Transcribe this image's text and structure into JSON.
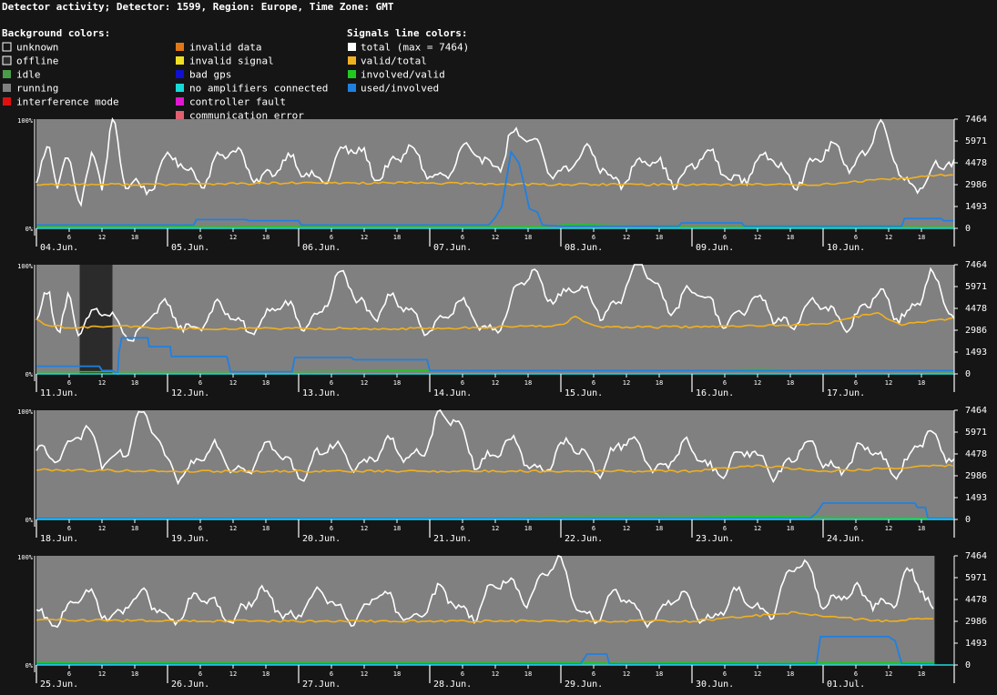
{
  "title": "Detector activity; Detector: 1599, Region: Europe, Time Zone: GMT",
  "legend": {
    "background_header": "Background colors:",
    "signals_header": "Signals line colors:",
    "background": [
      {
        "label": "unknown",
        "color": "#151515",
        "outlined": true
      },
      {
        "label": "offline",
        "color": "#2b2b2b",
        "outlined": true
      },
      {
        "label": "idle",
        "color": "#4a9c4a"
      },
      {
        "label": "running",
        "color": "#808080"
      },
      {
        "label": "interference mode",
        "color": "#e01010"
      },
      {
        "label": "invalid data",
        "color": "#e07818"
      },
      {
        "label": "invalid signal",
        "color": "#f0e020"
      },
      {
        "label": "bad gps",
        "color": "#1010d0"
      },
      {
        "label": "no amplifiers connected",
        "color": "#18d8d8"
      },
      {
        "label": "controller fault",
        "color": "#e018d0"
      },
      {
        "label": "communication error",
        "color": "#e06070"
      }
    ],
    "signals": [
      {
        "label": "total (max = 7464)",
        "color": "#ffffff"
      },
      {
        "label": "valid/total",
        "color": "#f0b020"
      },
      {
        "label": "involved/valid",
        "color": "#20c820"
      },
      {
        "label": "used/involved",
        "color": "#2080e0"
      }
    ]
  },
  "chart_data": {
    "type": "line",
    "left_axis": {
      "labels": [
        "100%",
        "0%"
      ],
      "range": [
        0,
        100
      ]
    },
    "right_axis": {
      "ticks": [
        "7464",
        "5971",
        "4478",
        "2986",
        "1493",
        "0"
      ],
      "range": [
        0,
        7464
      ]
    },
    "hour_ticks": [
      "6",
      "12",
      "18"
    ],
    "panels": [
      {
        "days": [
          "04.Jun.",
          "05.Jun.",
          "06.Jun.",
          "07.Jun.",
          "08.Jun.",
          "09.Jun.",
          "10.Jun."
        ],
        "offline": [],
        "total_ex": [
          [
            0.0,
            3000
          ],
          [
            0.1,
            4700
          ],
          [
            0.16,
            2600
          ],
          [
            0.25,
            5000
          ],
          [
            0.33,
            2300
          ],
          [
            0.42,
            5400
          ],
          [
            0.5,
            2500
          ],
          [
            0.58,
            6400
          ],
          [
            0.67,
            2800
          ],
          [
            0.75,
            4200
          ],
          [
            0.83,
            2900
          ],
          [
            1.0,
            4000
          ],
          [
            1.5,
            4500
          ],
          [
            2.0,
            3800
          ],
          [
            2.5,
            4800
          ],
          [
            3.0,
            4200
          ],
          [
            3.4,
            4500
          ],
          [
            3.6,
            6500
          ],
          [
            3.75,
            5000
          ],
          [
            4.0,
            4600
          ],
          [
            4.5,
            3900
          ],
          [
            5.0,
            4200
          ],
          [
            5.5,
            4000
          ],
          [
            6.0,
            4300
          ],
          [
            6.4,
            6300
          ],
          [
            6.6,
            3600
          ],
          [
            7.0,
            3800
          ]
        ],
        "valid": [
          [
            0.0,
            3000
          ],
          [
            1.0,
            3000
          ],
          [
            2.0,
            3100
          ],
          [
            3.0,
            3100
          ],
          [
            3.7,
            3000
          ],
          [
            4.0,
            3000
          ],
          [
            5.0,
            3000
          ],
          [
            6.0,
            3000
          ],
          [
            7.0,
            3700
          ]
        ],
        "used": [
          [
            0.0,
            3
          ],
          [
            1.2,
            3
          ],
          [
            1.22,
            8
          ],
          [
            1.6,
            8
          ],
          [
            1.62,
            7
          ],
          [
            2.0,
            7
          ],
          [
            2.02,
            3
          ],
          [
            3.45,
            3
          ],
          [
            3.5,
            10
          ],
          [
            3.55,
            20
          ],
          [
            3.62,
            70
          ],
          [
            3.68,
            60
          ],
          [
            3.72,
            40
          ],
          [
            3.76,
            18
          ],
          [
            3.82,
            15
          ],
          [
            3.86,
            3
          ],
          [
            4.0,
            2
          ],
          [
            4.9,
            2
          ],
          [
            4.92,
            5
          ],
          [
            5.38,
            5
          ],
          [
            5.4,
            2
          ],
          [
            6.6,
            2
          ],
          [
            6.62,
            9
          ],
          [
            6.9,
            9
          ],
          [
            6.92,
            7
          ],
          [
            7.0,
            7
          ]
        ],
        "involved": [
          [
            0.0,
            2
          ],
          [
            1.0,
            2
          ],
          [
            1.3,
            1
          ],
          [
            2.0,
            2
          ],
          [
            3.0,
            2
          ],
          [
            3.9,
            2
          ],
          [
            4.1,
            4
          ],
          [
            4.3,
            3
          ],
          [
            4.6,
            2
          ],
          [
            5.0,
            1
          ],
          [
            6.0,
            1
          ],
          [
            7.0,
            1
          ]
        ]
      },
      {
        "days": [
          "11.Jun.",
          "12.Jun.",
          "13.Jun.",
          "14.Jun.",
          "15.Jun.",
          "16.Jun.",
          "17.Jun."
        ],
        "offline": [
          [
            0.33,
            0.58
          ]
        ],
        "total_ex": [
          [
            0.0,
            3000
          ],
          [
            0.1,
            4800
          ],
          [
            0.17,
            3000
          ],
          [
            0.25,
            6400
          ],
          [
            0.31,
            3500
          ],
          [
            0.58,
            3600
          ],
          [
            0.7,
            3100
          ],
          [
            1.0,
            3900
          ],
          [
            1.5,
            3700
          ],
          [
            2.0,
            4000
          ],
          [
            2.4,
            5700
          ],
          [
            2.8,
            4000
          ],
          [
            3.0,
            3900
          ],
          [
            3.6,
            3800
          ],
          [
            3.8,
            6800
          ],
          [
            3.9,
            7500
          ],
          [
            4.0,
            5200
          ],
          [
            4.2,
            4800
          ],
          [
            4.5,
            5800
          ],
          [
            4.7,
            6500
          ],
          [
            5.0,
            4700
          ],
          [
            5.5,
            4200
          ],
          [
            6.0,
            4100
          ],
          [
            6.5,
            4500
          ],
          [
            6.8,
            5700
          ],
          [
            7.0,
            3900
          ]
        ],
        "valid": [
          [
            0.0,
            3800
          ],
          [
            0.08,
            3300
          ],
          [
            0.2,
            3200
          ],
          [
            0.33,
            3200
          ],
          [
            0.58,
            3200
          ],
          [
            0.6,
            3300
          ],
          [
            1.0,
            3100
          ],
          [
            2.0,
            3100
          ],
          [
            3.0,
            3100
          ],
          [
            4.0,
            3300
          ],
          [
            4.1,
            3900
          ],
          [
            4.3,
            3200
          ],
          [
            5.0,
            3200
          ],
          [
            6.0,
            3400
          ],
          [
            6.4,
            4200
          ],
          [
            6.6,
            3400
          ],
          [
            7.0,
            3800
          ]
        ],
        "used": [
          [
            0.0,
            7
          ],
          [
            0.48,
            7
          ],
          [
            0.5,
            3
          ],
          [
            0.58,
            3
          ],
          [
            0.62,
            0
          ],
          [
            0.63,
            20
          ],
          [
            0.65,
            33
          ],
          [
            0.85,
            33
          ],
          [
            0.86,
            25
          ],
          [
            1.02,
            25
          ],
          [
            1.03,
            16
          ],
          [
            1.45,
            16
          ],
          [
            1.46,
            13
          ],
          [
            1.48,
            2
          ],
          [
            1.95,
            2
          ],
          [
            1.97,
            15
          ],
          [
            2.4,
            15
          ],
          [
            2.42,
            13
          ],
          [
            2.98,
            13
          ],
          [
            3.0,
            3
          ],
          [
            3.5,
            3
          ],
          [
            4.0,
            3
          ],
          [
            5.0,
            3
          ],
          [
            6.0,
            3
          ],
          [
            7.0,
            3
          ]
        ],
        "involved": [
          [
            0.0,
            2
          ],
          [
            0.58,
            2
          ],
          [
            0.7,
            2
          ],
          [
            1.0,
            2
          ],
          [
            2.0,
            2
          ],
          [
            3.0,
            3
          ],
          [
            4.0,
            3
          ],
          [
            4.5,
            3
          ],
          [
            5.0,
            3
          ],
          [
            5.5,
            4
          ],
          [
            6.0,
            3
          ],
          [
            7.0,
            2
          ]
        ]
      },
      {
        "days": [
          "18.Jun.",
          "19.Jun.",
          "20.Jun.",
          "21.Jun.",
          "22.Jun.",
          "23.Jun.",
          "24.Jun."
        ],
        "offline": [],
        "total_ex": [
          [
            0.0,
            3800
          ],
          [
            0.3,
            6300
          ],
          [
            0.5,
            3500
          ],
          [
            0.75,
            6800
          ],
          [
            1.0,
            3800
          ],
          [
            1.5,
            4200
          ],
          [
            2.0,
            4000
          ],
          [
            2.5,
            4500
          ],
          [
            2.8,
            4200
          ],
          [
            3.0,
            6400
          ],
          [
            3.2,
            5800
          ],
          [
            3.5,
            4400
          ],
          [
            4.0,
            4200
          ],
          [
            4.5,
            4600
          ],
          [
            5.0,
            4100
          ],
          [
            5.5,
            3900
          ],
          [
            6.0,
            4300
          ],
          [
            6.5,
            4000
          ],
          [
            7.0,
            5200
          ]
        ],
        "valid": [
          [
            0.0,
            3400
          ],
          [
            1.0,
            3300
          ],
          [
            2.0,
            3300
          ],
          [
            3.0,
            3300
          ],
          [
            4.0,
            3300
          ],
          [
            5.0,
            3300
          ],
          [
            5.5,
            3700
          ],
          [
            6.0,
            3300
          ],
          [
            7.0,
            3700
          ]
        ],
        "used": [
          [
            0.0,
            1
          ],
          [
            5.9,
            1
          ],
          [
            5.95,
            6
          ],
          [
            6.0,
            15
          ],
          [
            6.7,
            15
          ],
          [
            6.72,
            11
          ],
          [
            6.78,
            11
          ],
          [
            6.8,
            1
          ],
          [
            7.0,
            1
          ]
        ],
        "involved": [
          [
            0.0,
            1
          ],
          [
            3.5,
            1
          ],
          [
            4.0,
            2
          ],
          [
            5.0,
            2
          ],
          [
            5.5,
            3
          ],
          [
            6.0,
            2
          ],
          [
            7.0,
            1
          ]
        ]
      },
      {
        "days": [
          "25.Jun.",
          "26.Jun.",
          "27.Jun.",
          "28.Jun.",
          "29.Jun.",
          "30.Jun.",
          "01.Jul."
        ],
        "offline": [],
        "unknown_tail": 6.85,
        "total_ex": [
          [
            0.0,
            3500
          ],
          [
            0.5,
            4200
          ],
          [
            1.0,
            3800
          ],
          [
            1.5,
            4000
          ],
          [
            2.0,
            4100
          ],
          [
            2.5,
            3900
          ],
          [
            3.0,
            4000
          ],
          [
            3.5,
            4600
          ],
          [
            3.9,
            6300
          ],
          [
            4.2,
            4000
          ],
          [
            4.5,
            4000
          ],
          [
            5.0,
            3800
          ],
          [
            5.5,
            4100
          ],
          [
            5.85,
            6000
          ],
          [
            6.0,
            5500
          ],
          [
            6.3,
            4000
          ],
          [
            6.6,
            5700
          ],
          [
            6.85,
            3700
          ]
        ],
        "valid": [
          [
            0.0,
            3100
          ],
          [
            1.0,
            3000
          ],
          [
            2.0,
            3000
          ],
          [
            3.0,
            3000
          ],
          [
            4.0,
            3000
          ],
          [
            5.0,
            3000
          ],
          [
            5.8,
            3600
          ],
          [
            6.0,
            3300
          ],
          [
            6.5,
            3000
          ],
          [
            6.85,
            3200
          ]
        ],
        "used": [
          [
            0.0,
            1
          ],
          [
            4.15,
            1
          ],
          [
            4.2,
            10
          ],
          [
            4.35,
            10
          ],
          [
            4.37,
            1
          ],
          [
            5.95,
            1
          ],
          [
            5.98,
            26
          ],
          [
            6.5,
            26
          ],
          [
            6.55,
            22
          ],
          [
            6.6,
            1
          ],
          [
            6.85,
            1
          ]
        ],
        "involved": [
          [
            0.0,
            2
          ],
          [
            0.5,
            3
          ],
          [
            1.0,
            2
          ],
          [
            2.0,
            2
          ],
          [
            3.0,
            2
          ],
          [
            4.0,
            2
          ],
          [
            4.5,
            3
          ],
          [
            5.0,
            2
          ],
          [
            5.7,
            3
          ],
          [
            6.0,
            2
          ],
          [
            6.85,
            2
          ]
        ]
      }
    ]
  }
}
